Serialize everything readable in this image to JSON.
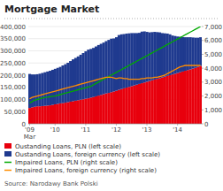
{
  "chart_data": {
    "type": "bar",
    "title": "Mortgage Market",
    "source": "Source: Narodawy Bank Polski",
    "stacked": true,
    "grid": true,
    "legend": "bottom",
    "categories": [
      "'09\nMar",
      null,
      null,
      null,
      null,
      null,
      null,
      null,
      null,
      null,
      "'10",
      null,
      null,
      null,
      null,
      null,
      null,
      null,
      null,
      null,
      null,
      null,
      "'11",
      null,
      null,
      null,
      null,
      null,
      null,
      null,
      null,
      null,
      null,
      null,
      "'12",
      null,
      null,
      null,
      null,
      null,
      null,
      null,
      null,
      null,
      null,
      null,
      "'13",
      null,
      null,
      null,
      null,
      null,
      null,
      null,
      null,
      null,
      null,
      null,
      "'14",
      null,
      null,
      null,
      null,
      null,
      null,
      null,
      null,
      null
    ],
    "ylim": [
      0,
      400000
    ],
    "yticks": [
      0,
      {
        "value": 50000,
        "label": "50,000"
      },
      {
        "value": 100000,
        "label": "100,000"
      },
      {
        "value": 150000,
        "label": "150,000"
      },
      {
        "value": 200000,
        "label": "200,000"
      },
      {
        "value": 250000,
        "label": "250,000"
      },
      {
        "value": 300000,
        "label": "300,000"
      },
      {
        "value": 350000,
        "label": "350,000"
      },
      {
        "value": 400000,
        "label": "400,000"
      }
    ],
    "y2lim": [
      0,
      7000
    ],
    "y2ticks": [
      0,
      {
        "value": 1000,
        "label": "1,000"
      },
      {
        "value": 2000,
        "label": "2,000"
      },
      {
        "value": 3000,
        "label": "3,000"
      },
      {
        "value": 4000,
        "label": "4,000"
      },
      {
        "value": 5000,
        "label": "5,000"
      },
      {
        "value": 6000,
        "label": "6,000"
      },
      {
        "value": 7000,
        "label": "7,000"
      }
    ],
    "series": [
      {
        "name": "Oustanding Loans, PLN (left scale)",
        "type": "bar",
        "color": "#e8000d",
        "values": [
          65000,
          68000,
          70000,
          72000,
          72000,
          73000,
          74000,
          75000,
          76000,
          78000,
          80000,
          82000,
          84000,
          85000,
          87000,
          89000,
          91000,
          93000,
          95000,
          97000,
          99000,
          101000,
          103000,
          105000,
          108000,
          110000,
          113000,
          116000,
          119000,
          122000,
          125000,
          127000,
          130000,
          133000,
          136000,
          140000,
          143000,
          146000,
          149000,
          152000,
          155000,
          158000,
          161000,
          164000,
          167000,
          170000,
          173000,
          176000,
          179000,
          182000,
          185000,
          188000,
          191000,
          194000,
          197000,
          200000,
          203000,
          206000,
          209000,
          212000,
          215000,
          218000,
          221000,
          224000,
          227000,
          230000,
          234000,
          238000
        ]
      },
      {
        "name": "Oustanding Loans, foreign currency (left scale)",
        "type": "bar",
        "color": "#1f3a8f",
        "values": [
          140000,
          135000,
          133000,
          132000,
          134000,
          136000,
          138000,
          140000,
          142000,
          144000,
          146000,
          148000,
          150000,
          155000,
          158000,
          162000,
          167000,
          172000,
          176000,
          180000,
          185000,
          190000,
          195000,
          200000,
          200000,
          202000,
          205000,
          208000,
          210000,
          212000,
          215000,
          218000,
          220000,
          218000,
          220000,
          225000,
          225000,
          223000,
          222000,
          220000,
          218000,
          215000,
          212000,
          210000,
          212000,
          210000,
          205000,
          200000,
          198000,
          196000,
          192000,
          188000,
          182000,
          178000,
          174000,
          168000,
          160000,
          155000,
          150000,
          146000,
          142000,
          138000,
          135000,
          132000,
          128000,
          124000,
          120000,
          118000
        ]
      },
      {
        "name": "Impaired Loans, PLN (right scale)",
        "type": "line",
        "axis": "y2",
        "color": "#00aa00",
        "values": [
          1500,
          1600,
          1700,
          1750,
          1800,
          1850,
          1900,
          1920,
          1950,
          1980,
          2000,
          2050,
          2100,
          2150,
          2200,
          2250,
          2300,
          2350,
          2400,
          2450,
          2500,
          2550,
          2600,
          2650,
          2700,
          2800,
          2900,
          3000,
          3100,
          3200,
          3300,
          3400,
          3500,
          3600,
          3700,
          3800,
          3900,
          4000,
          4100,
          4200,
          4300,
          4400,
          4500,
          4600,
          4700,
          4800,
          4900,
          5000,
          5100,
          5200,
          5300,
          5400,
          5500,
          5600,
          5700,
          5800,
          5900,
          6000,
          6100,
          6200,
          6300,
          6400,
          6500,
          6600,
          6700,
          6800,
          6900,
          7000
        ]
      },
      {
        "name": "Impaired Loans, foreign currency (right scale)",
        "type": "line",
        "axis": "y2",
        "color": "#ff8c00",
        "values": [
          1800,
          1900,
          1950,
          2000,
          2050,
          2100,
          2150,
          2200,
          2250,
          2300,
          2350,
          2400,
          2450,
          2500,
          2550,
          2600,
          2650,
          2700,
          2750,
          2800,
          2850,
          2900,
          2950,
          3000,
          3050,
          3100,
          3150,
          3200,
          3250,
          3300,
          3350,
          3350,
          3350,
          3300,
          3250,
          3300,
          3300,
          3250,
          3250,
          3200,
          3200,
          3200,
          3200,
          3200,
          3250,
          3250,
          3300,
          3300,
          3300,
          3350,
          3350,
          3400,
          3450,
          3500,
          3600,
          3700,
          3800,
          3900,
          4000,
          4100,
          4150,
          4200,
          4200,
          4200,
          4200,
          4200,
          4200,
          4200
        ]
      }
    ]
  }
}
